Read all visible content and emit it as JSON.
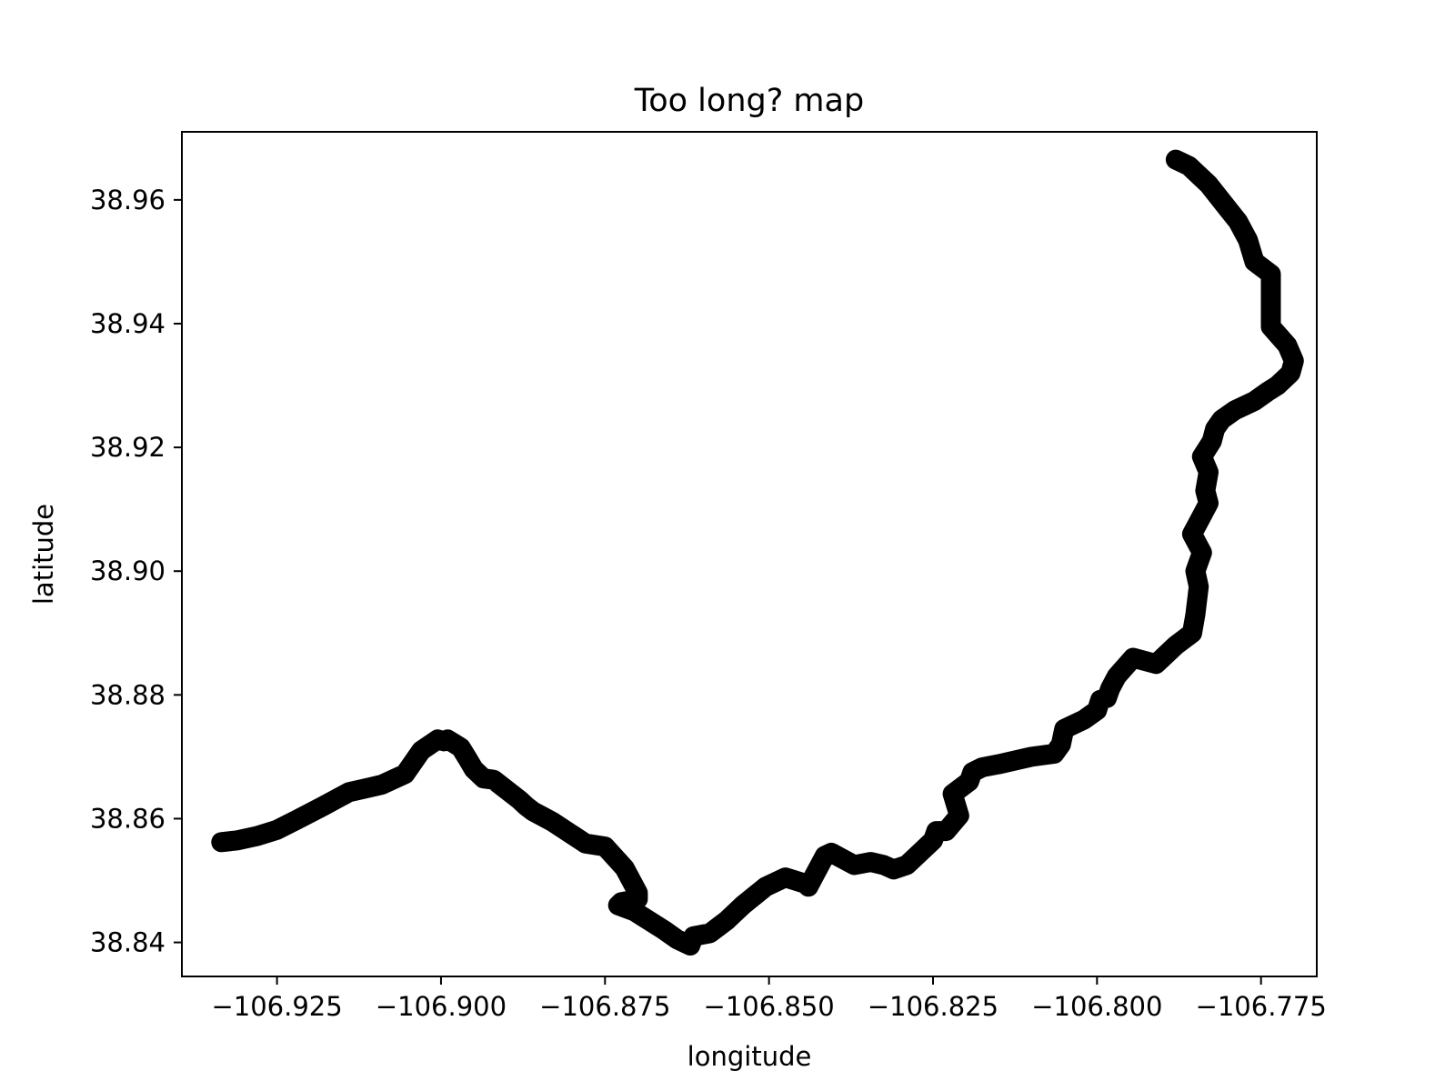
{
  "chart_data": {
    "type": "line",
    "title": "Too long? map",
    "xlabel": "longitude",
    "ylabel": "latitude",
    "xlim": [
      -106.9395,
      -106.7665
    ],
    "ylim": [
      38.8345,
      38.971
    ],
    "xticks": [
      -106.925,
      -106.9,
      -106.875,
      -106.85,
      -106.825,
      -106.8,
      -106.775
    ],
    "xtick_labels": [
      "−106.925",
      "−106.900",
      "−106.875",
      "−106.850",
      "−106.825",
      "−106.800",
      "−106.775"
    ],
    "yticks": [
      38.84,
      38.86,
      38.88,
      38.9,
      38.92,
      38.94,
      38.96
    ],
    "ytick_labels": [
      "38.84",
      "38.86",
      "38.88",
      "38.90",
      "38.92",
      "38.94",
      "38.96"
    ],
    "grid": false,
    "legend": false,
    "line_color": "#000000",
    "series": [
      {
        "x": [
          -106.9335,
          -106.931,
          -106.928,
          -106.925,
          -106.922,
          -106.918,
          -106.914,
          -106.911,
          -106.909,
          -106.9055,
          -106.903,
          -106.9005,
          -106.8995,
          -106.899,
          -106.897,
          -106.896,
          -106.895,
          -106.8935,
          -106.892,
          -106.888,
          -106.887,
          -106.886,
          -106.883,
          -106.878,
          -106.875,
          -106.872,
          -106.87,
          -106.87,
          -106.8725,
          -106.873,
          -106.8705,
          -106.866,
          -106.864,
          -106.862,
          -106.8615,
          -106.859,
          -106.8565,
          -106.854,
          -106.8505,
          -106.8475,
          -106.8445,
          -106.844,
          -106.843,
          -106.8415,
          -106.8405,
          -106.837,
          -106.8345,
          -106.8325,
          -106.831,
          -106.829,
          -106.827,
          -106.825,
          -106.8245,
          -106.823,
          -106.821,
          -106.822,
          -106.8195,
          -106.819,
          -106.8175,
          -106.815,
          -106.81,
          -106.8065,
          -106.8055,
          -106.805,
          -106.802,
          -106.8,
          -106.7995,
          -106.7985,
          -106.798,
          -106.797,
          -106.7945,
          -106.791,
          -106.79,
          -106.788,
          -106.7855,
          -106.785,
          -106.7845,
          -106.785,
          -106.784,
          -106.7855,
          -106.784,
          -106.783,
          -106.7835,
          -106.783,
          -106.784,
          -106.7825,
          -106.782,
          -106.781,
          -106.779,
          -106.776,
          -106.774,
          -106.7725,
          -106.7705,
          -106.77,
          -106.771,
          -106.7735,
          -106.7735,
          -106.7735,
          -106.7735,
          -106.776,
          -106.777,
          -106.7785,
          -106.78,
          -106.7815,
          -106.783,
          -106.785,
          -106.786,
          -106.788
        ],
        "y": [
          38.8562,
          38.8565,
          38.8572,
          38.8582,
          38.8598,
          38.862,
          38.8643,
          38.865,
          38.8655,
          38.8672,
          38.871,
          38.8728,
          38.8725,
          38.8728,
          38.8715,
          38.8698,
          38.868,
          38.8665,
          38.8663,
          38.863,
          38.862,
          38.8612,
          38.8595,
          38.856,
          38.8555,
          38.852,
          38.848,
          38.847,
          38.8465,
          38.846,
          38.845,
          38.842,
          38.8405,
          38.8395,
          38.841,
          38.8415,
          38.8435,
          38.846,
          38.849,
          38.8505,
          38.8495,
          38.849,
          38.851,
          38.854,
          38.8545,
          38.8525,
          38.853,
          38.8525,
          38.8518,
          38.8525,
          38.8545,
          38.8565,
          38.858,
          38.858,
          38.8605,
          38.864,
          38.866,
          38.8675,
          38.8683,
          38.8688,
          38.87,
          38.8705,
          38.872,
          38.8745,
          38.876,
          38.8775,
          38.8792,
          38.8795,
          38.881,
          38.883,
          38.886,
          38.885,
          38.886,
          38.888,
          38.89,
          38.893,
          38.8975,
          38.9,
          38.903,
          38.906,
          38.909,
          38.911,
          38.913,
          38.916,
          38.9185,
          38.921,
          38.923,
          38.9245,
          38.926,
          38.9275,
          38.929,
          38.93,
          38.932,
          38.934,
          38.9365,
          38.9395,
          38.942,
          38.945,
          38.948,
          38.95,
          38.9535,
          38.9565,
          38.9585,
          38.9605,
          38.9625,
          38.9645,
          38.9655,
          38.9665
        ]
      }
    ]
  }
}
